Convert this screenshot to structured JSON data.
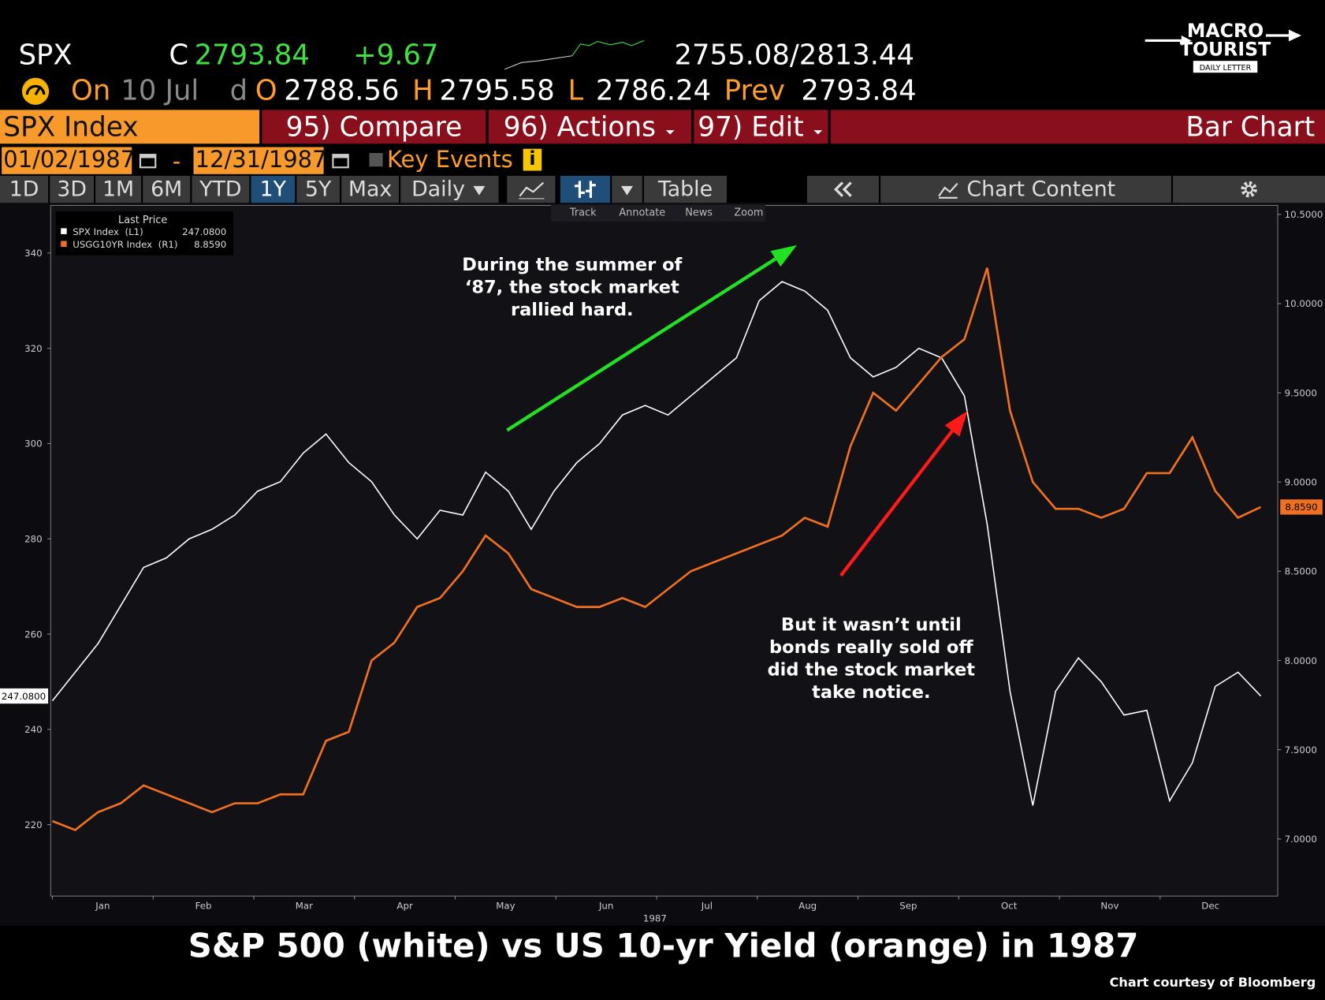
{
  "header": {
    "ticker": "SPX",
    "close_label": "C",
    "last": "2793.84",
    "change": "+9.67",
    "range": "2755.08/2813.44",
    "on_label": "On",
    "date": "10 Jul",
    "period": "d",
    "open_label": "O",
    "open": "2788.56",
    "high_label": "H",
    "high": "2795.58",
    "low_label": "L",
    "low": "2786.24",
    "prev_label": "Prev",
    "prev": "2793.84"
  },
  "logo": {
    "line1": "MACRO",
    "line2": "TOURIST",
    "line3": "DAILY LETTER"
  },
  "toolbar": {
    "security": "SPX Index",
    "compare": "95) Compare",
    "actions": "96) Actions",
    "edit": "97) Edit",
    "view": "Bar Chart"
  },
  "date_bar": {
    "start": "01/02/1987",
    "dash": "-",
    "end": "12/31/1987",
    "key_events": "Key Events",
    "info": "i"
  },
  "tabs": [
    "1D",
    "3D",
    "1M",
    "6M",
    "YTD",
    "1Y",
    "5Y",
    "Max",
    "Daily"
  ],
  "table_button": "Table",
  "chart_content": "Chart Content",
  "chart_tools": [
    "Track",
    "Annotate",
    "News",
    "Zoom"
  ],
  "chart_data": {
    "type": "line",
    "legend_title": "Last Price",
    "month_labels": [
      "Jan",
      "Feb",
      "Mar",
      "Apr",
      "May",
      "Jun",
      "Jul",
      "Aug",
      "Sep",
      "Oct",
      "Nov",
      "Dec"
    ],
    "x_axis_label": "1987",
    "ylim": [
      205,
      350
    ],
    "yticks": [
      220,
      240,
      260,
      280,
      300,
      320,
      340
    ],
    "y2lim": [
      6.68,
      10.55
    ],
    "y2ticks": [
      {
        "value": 7,
        "label": "7.0000"
      },
      {
        "value": 7.5,
        "label": "7.5000"
      },
      {
        "value": 8,
        "label": "8.0000"
      },
      {
        "value": 8.5,
        "label": "8.5000"
      },
      {
        "value": 9,
        "label": "9.0000"
      },
      {
        "value": 9.5,
        "label": "9.5000"
      },
      {
        "value": 10,
        "label": "10.0000"
      },
      {
        "value": 10.5,
        "label": "10.5000"
      }
    ],
    "series": [
      {
        "name": "SPX Index  (L1)",
        "color": "#ffffff",
        "last_label": "247.0800",
        "values": [
          246,
          252,
          258,
          266,
          274,
          276,
          280,
          282,
          285,
          290,
          292,
          298,
          302,
          296,
          292,
          285,
          280,
          286,
          285,
          294,
          290,
          282,
          290,
          296,
          300,
          306,
          308,
          306,
          310,
          314,
          318,
          330,
          334,
          332,
          328,
          318,
          314,
          316,
          320,
          318,
          310,
          283,
          248,
          224,
          248,
          255,
          250,
          243,
          244,
          225,
          233,
          249,
          252,
          247
        ]
      },
      {
        "name": "USGG10YR Index  (R1)",
        "color": "#f07020",
        "axis": "y2",
        "last_label": "8.8590",
        "values": [
          7.1,
          7.05,
          7.15,
          7.2,
          7.3,
          7.25,
          7.2,
          7.15,
          7.2,
          7.2,
          7.25,
          7.25,
          7.55,
          7.6,
          8.0,
          8.1,
          8.3,
          8.35,
          8.5,
          8.7,
          8.6,
          8.4,
          8.35,
          8.3,
          8.3,
          8.35,
          8.3,
          8.4,
          8.5,
          8.55,
          8.6,
          8.65,
          8.7,
          8.8,
          8.75,
          9.2,
          9.5,
          9.4,
          9.55,
          9.7,
          9.8,
          10.2,
          9.4,
          9.0,
          8.85,
          8.85,
          8.8,
          8.85,
          9.05,
          9.05,
          9.25,
          8.95,
          8.8,
          8.86
        ]
      }
    ],
    "annotations": [
      {
        "color": "#22e022",
        "lines": [
          "During the summer of",
          "‘87, the stock market",
          "rallied hard."
        ]
      },
      {
        "color": "#ff1a1a",
        "lines": [
          "But it wasn’t until",
          "bonds really sold off",
          "did the stock market",
          "take notice."
        ]
      }
    ],
    "title": "S&P 500 (white) vs US 10-yr Yield (orange) in 1987",
    "credit": "Chart courtesy of Bloomberg"
  }
}
